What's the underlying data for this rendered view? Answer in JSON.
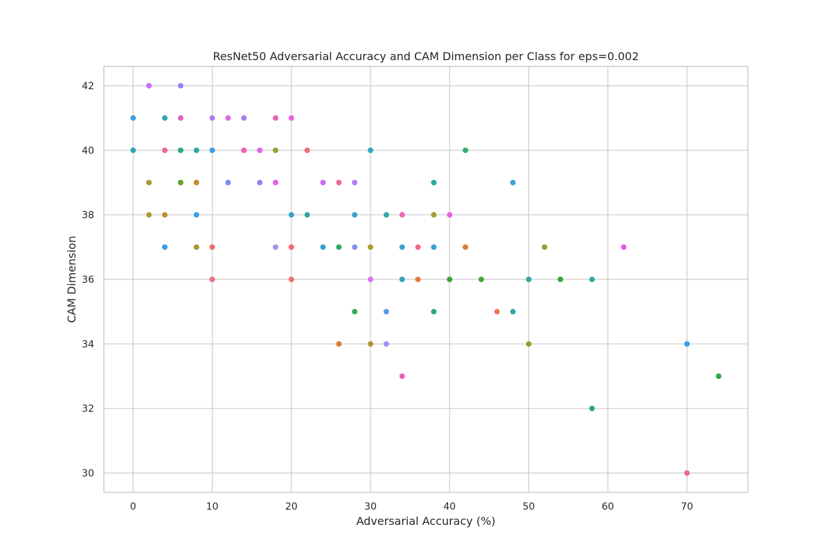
{
  "chart_data": {
    "type": "scatter",
    "title": "ResNet50 Adversarial Accuracy and CAM Dimension per Class for eps=0.002",
    "xlabel": "Adversarial Accuracy (%)",
    "ylabel": "CAM Dimension",
    "xlim": [
      -3.7,
      77.7
    ],
    "ylim": [
      29.4,
      42.6
    ],
    "xticks": [
      0,
      10,
      20,
      30,
      40,
      50,
      60,
      70
    ],
    "yticks": [
      30,
      32,
      34,
      36,
      38,
      40,
      42
    ],
    "grid": true,
    "legend": "none",
    "points": [
      {
        "x": 2,
        "y": 42,
        "color": "#cb6ff8"
      },
      {
        "x": 6,
        "y": 42,
        "color": "#9f80f4"
      },
      {
        "x": 0,
        "y": 41,
        "color": "#3d9fe7"
      },
      {
        "x": 4,
        "y": 41,
        "color": "#2ea7b4"
      },
      {
        "x": 6,
        "y": 41,
        "color": "#ea5fc4"
      },
      {
        "x": 10,
        "y": 41,
        "color": "#b27af6"
      },
      {
        "x": 12,
        "y": 41,
        "color": "#e165e4"
      },
      {
        "x": 14,
        "y": 41,
        "color": "#a27ef4"
      },
      {
        "x": 18,
        "y": 41,
        "color": "#ef5fb0"
      },
      {
        "x": 20,
        "y": 41,
        "color": "#e85fe8"
      },
      {
        "x": 0,
        "y": 40,
        "color": "#2ea8b0"
      },
      {
        "x": 4,
        "y": 40,
        "color": "#ee64a0"
      },
      {
        "x": 6,
        "y": 40,
        "color": "#2ea886"
      },
      {
        "x": 8,
        "y": 40,
        "color": "#31a8a6"
      },
      {
        "x": 10,
        "y": 40,
        "color": "#3c9ee0"
      },
      {
        "x": 14,
        "y": 40,
        "color": "#ee62a8"
      },
      {
        "x": 16,
        "y": 40,
        "color": "#e362e9"
      },
      {
        "x": 18,
        "y": 40,
        "color": "#9aa035"
      },
      {
        "x": 22,
        "y": 40,
        "color": "#f26b78"
      },
      {
        "x": 30,
        "y": 40,
        "color": "#36a8c0"
      },
      {
        "x": 42,
        "y": 40,
        "color": "#32ab6e"
      },
      {
        "x": 2,
        "y": 39,
        "color": "#b59432"
      },
      {
        "x": 6,
        "y": 39,
        "color": "#5ea634"
      },
      {
        "x": 8,
        "y": 39,
        "color": "#c78a32"
      },
      {
        "x": 12,
        "y": 39,
        "color": "#7c8df0"
      },
      {
        "x": 16,
        "y": 39,
        "color": "#8e85f2"
      },
      {
        "x": 18,
        "y": 39,
        "color": "#e563e8"
      },
      {
        "x": 24,
        "y": 39,
        "color": "#c46cf6"
      },
      {
        "x": 26,
        "y": 39,
        "color": "#f0649a"
      },
      {
        "x": 28,
        "y": 39,
        "color": "#b97af6"
      },
      {
        "x": 38,
        "y": 39,
        "color": "#30a89a"
      },
      {
        "x": 48,
        "y": 39,
        "color": "#3aa0d8"
      },
      {
        "x": 2,
        "y": 38,
        "color": "#b39a30"
      },
      {
        "x": 4,
        "y": 38,
        "color": "#c08c32"
      },
      {
        "x": 8,
        "y": 38,
        "color": "#3aa0e0"
      },
      {
        "x": 20,
        "y": 38,
        "color": "#36a6c6"
      },
      {
        "x": 22,
        "y": 38,
        "color": "#31a8a0"
      },
      {
        "x": 28,
        "y": 38,
        "color": "#38a6c4"
      },
      {
        "x": 32,
        "y": 38,
        "color": "#33a8ae"
      },
      {
        "x": 34,
        "y": 38,
        "color": "#f067b8"
      },
      {
        "x": 38,
        "y": 38,
        "color": "#a0a032"
      },
      {
        "x": 40,
        "y": 38,
        "color": "#e661e0"
      },
      {
        "x": 4,
        "y": 37,
        "color": "#3b9fe4"
      },
      {
        "x": 8,
        "y": 37,
        "color": "#a89830"
      },
      {
        "x": 10,
        "y": 37,
        "color": "#f06d6a"
      },
      {
        "x": 18,
        "y": 37,
        "color": "#a68ef4"
      },
      {
        "x": 20,
        "y": 37,
        "color": "#f3666e"
      },
      {
        "x": 24,
        "y": 37,
        "color": "#37a0d6"
      },
      {
        "x": 26,
        "y": 37,
        "color": "#2fa86a"
      },
      {
        "x": 28,
        "y": 37,
        "color": "#8a90ee"
      },
      {
        "x": 30,
        "y": 37,
        "color": "#a3a030"
      },
      {
        "x": 34,
        "y": 37,
        "color": "#38a4c8"
      },
      {
        "x": 36,
        "y": 37,
        "color": "#f0688a"
      },
      {
        "x": 38,
        "y": 37,
        "color": "#38a4ce"
      },
      {
        "x": 42,
        "y": 37,
        "color": "#d97c30"
      },
      {
        "x": 52,
        "y": 37,
        "color": "#93a032"
      },
      {
        "x": 62,
        "y": 37,
        "color": "#e257ec"
      },
      {
        "x": 10,
        "y": 36,
        "color": "#f06e84"
      },
      {
        "x": 20,
        "y": 36,
        "color": "#f3706e"
      },
      {
        "x": 30,
        "y": 36,
        "color": "#da6ef4"
      },
      {
        "x": 34,
        "y": 36,
        "color": "#31a4b8"
      },
      {
        "x": 36,
        "y": 36,
        "color": "#e6793a"
      },
      {
        "x": 40,
        "y": 36,
        "color": "#3ba53a"
      },
      {
        "x": 44,
        "y": 36,
        "color": "#4aa636"
      },
      {
        "x": 50,
        "y": 36,
        "color": "#2ea8a0"
      },
      {
        "x": 54,
        "y": 36,
        "color": "#3aa640"
      },
      {
        "x": 58,
        "y": 36,
        "color": "#30aaa8"
      },
      {
        "x": 28,
        "y": 35,
        "color": "#33a85a"
      },
      {
        "x": 32,
        "y": 35,
        "color": "#5b96ea"
      },
      {
        "x": 38,
        "y": 35,
        "color": "#2ea882"
      },
      {
        "x": 46,
        "y": 35,
        "color": "#f0775a"
      },
      {
        "x": 48,
        "y": 35,
        "color": "#2ea8a4"
      },
      {
        "x": 26,
        "y": 34,
        "color": "#e07a2e"
      },
      {
        "x": 30,
        "y": 34,
        "color": "#aa9a30"
      },
      {
        "x": 32,
        "y": 34,
        "color": "#a48ef0"
      },
      {
        "x": 50,
        "y": 34,
        "color": "#9a9a30"
      },
      {
        "x": 70,
        "y": 34,
        "color": "#3b9fe4"
      },
      {
        "x": 34,
        "y": 33,
        "color": "#ee5fbc"
      },
      {
        "x": 74,
        "y": 33,
        "color": "#2fa84a"
      },
      {
        "x": 58,
        "y": 32,
        "color": "#2fa864"
      },
      {
        "x": 70,
        "y": 30,
        "color": "#f06b8a"
      }
    ]
  }
}
